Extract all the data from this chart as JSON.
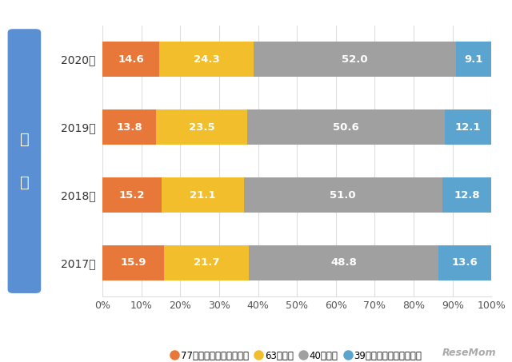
{
  "years": [
    "2020年",
    "2019年",
    "2018年",
    "2017年"
  ],
  "categories": [
    "77点以上（高ストレス）",
    "63点以上",
    "40点以上",
    "39点以下（低ストレス）"
  ],
  "values": [
    [
      14.6,
      24.3,
      52.0,
      9.1
    ],
    [
      13.8,
      23.5,
      50.6,
      12.1
    ],
    [
      15.2,
      21.1,
      51.0,
      12.8
    ],
    [
      15.9,
      21.7,
      48.8,
      13.6
    ]
  ],
  "colors": [
    "#E8773A",
    "#F2BE2C",
    "#A0A0A0",
    "#5BA4CF"
  ],
  "left_label_lines": [
    "男",
    "性"
  ],
  "left_bg_color": "#5B8FD4",
  "background_color": "#FFFFFF",
  "xlabel_ticks": [
    "0%",
    "10%",
    "20%",
    "30%",
    "40%",
    "50%",
    "60%",
    "70%",
    "80%",
    "90%",
    "100%"
  ],
  "bar_height": 0.52,
  "watermark": "ReseMom",
  "grid_color": "#DDDDDD",
  "label_fontsize": 9.5,
  "ytick_fontsize": 10
}
